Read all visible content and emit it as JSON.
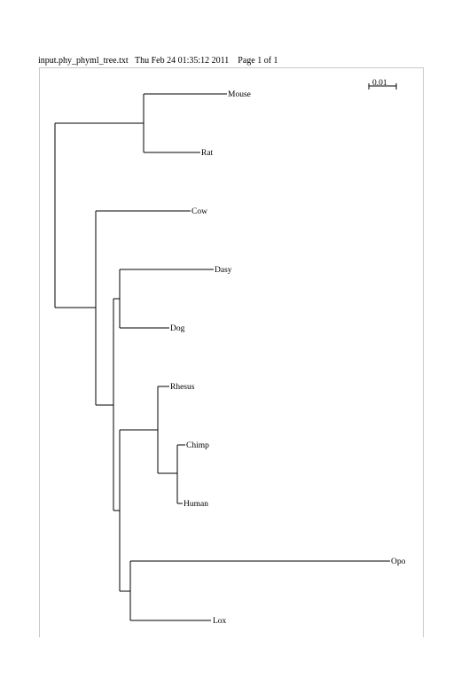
{
  "header": {
    "filename": "input.phy_phyml_tree.txt",
    "timestamp": "Thu Feb 24 01:35:12 2011",
    "page": "Page 1 of 1"
  },
  "scale_bar": {
    "label": "0.01",
    "length": 0.01
  },
  "tree": {
    "taxa": [
      "Mouse",
      "Rat",
      "Cow",
      "Dasy",
      "Dog",
      "Rhesus",
      "Chimp",
      "Human",
      "Opo",
      "Lox"
    ],
    "newick_order": "((Mouse,Rat),(Cow,((Dasy,Dog),((Rhesus,(Chimp,Human)),(Opo,Lox)))))"
  },
  "colors": {
    "line": "#000000",
    "frame": "#c8c8c8",
    "background": "#ffffff"
  }
}
